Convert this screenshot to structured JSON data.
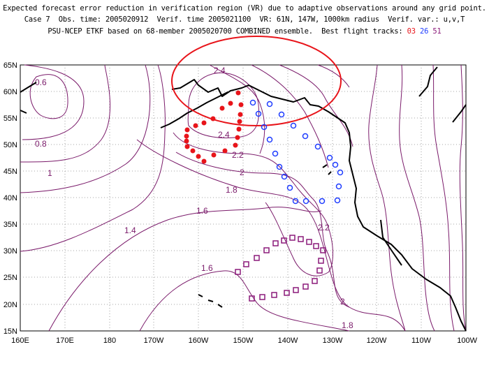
{
  "header": {
    "line1": "Expected forecast error reduction in verification region (VR) due to adaptive observations around any grid point.",
    "line2": "Case 7  Obs. time: 2005020912  Verif. time 2005021100  VR: 61N, 147W, 1000km radius  Verif. var.: u,v,T",
    "line3_prefix": "PSU-NCEP ETKF based on 68-member 2005020700 COMBINED ensemble.  Best flight tracks: ",
    "track_ids": [
      "03",
      "26",
      "51"
    ]
  },
  "colors": {
    "contour": "#7a1a6a",
    "track_03": "#e8141a",
    "track_26": "#1e3cff",
    "track_51": "#8b1a7a",
    "verification_region": "#e8141a",
    "coastline": "#000000"
  },
  "map": {
    "x_ticks": [
      "160E",
      "170E",
      "180",
      "170W",
      "160W",
      "150W",
      "140W",
      "130W",
      "120W",
      "110W",
      "100W"
    ],
    "y_ticks": [
      "65N",
      "60N",
      "55N",
      "50N",
      "45N",
      "40N",
      "35N",
      "30N",
      "25N",
      "20N",
      "15N"
    ],
    "contour_labels": [
      "0.6",
      "0.8",
      "1",
      "1.4",
      "1.6",
      "1.6",
      "1.8",
      "2",
      "2",
      "2.2",
      "2.2",
      "2.4",
      "2.4",
      "1.8"
    ],
    "verification_region": {
      "lat": 61,
      "lon": "147W",
      "radius_km": 1000
    }
  },
  "tracks": {
    "03": {
      "marker": "filled-circle",
      "points": 26
    },
    "26": {
      "marker": "open-circle",
      "points": 24
    },
    "51": {
      "marker": "open-square",
      "points": 26
    }
  }
}
